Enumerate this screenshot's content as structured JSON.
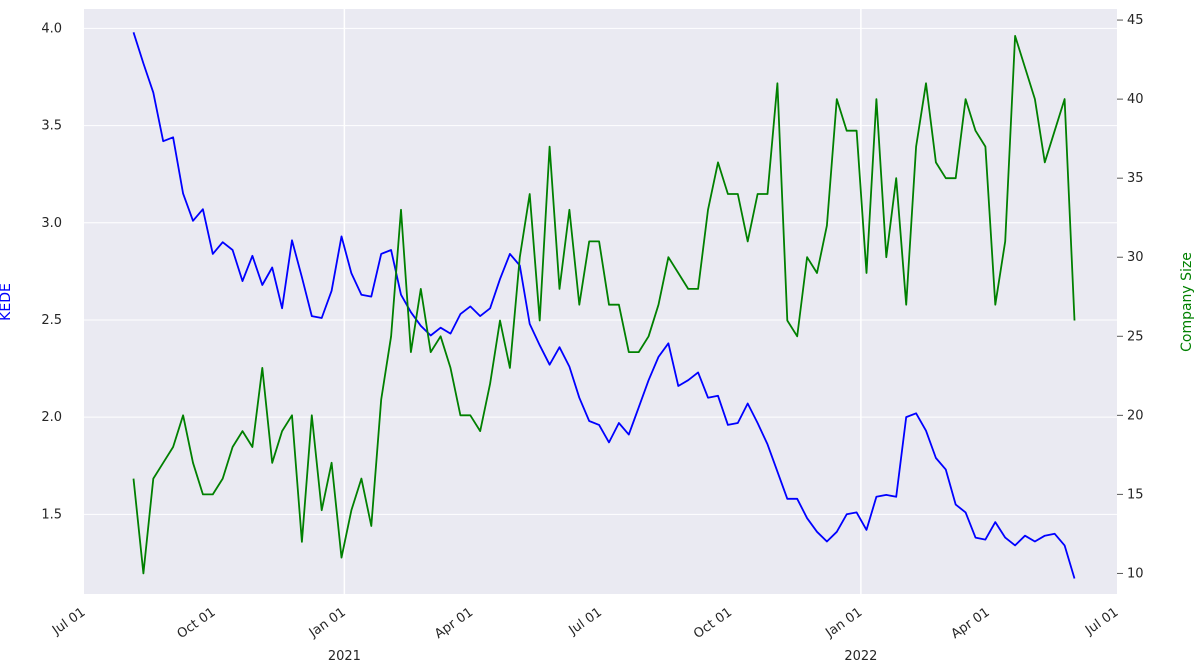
{
  "chart_data": {
    "type": "line",
    "x_axis": {
      "type": "date",
      "range": [
        "2020-07-01",
        "2022-07-01"
      ],
      "tick_labels": [
        "Jul 01",
        "Oct 01",
        "Jan 01",
        "Apr 01",
        "Jul 01",
        "Oct 01",
        "Jan 01",
        "Apr 01",
        "Jul 01"
      ],
      "tick_dates": [
        "2020-07-01",
        "2020-10-01",
        "2021-01-01",
        "2021-04-01",
        "2021-07-01",
        "2021-10-01",
        "2022-01-01",
        "2022-04-01",
        "2022-07-01"
      ],
      "year_labels": [
        {
          "label": "2021",
          "date": "2021-01-01"
        },
        {
          "label": "2022",
          "date": "2022-01-01"
        }
      ]
    },
    "y_left": {
      "label": "KEDE",
      "range": [
        1.09,
        4.1
      ],
      "ticks": [
        1.5,
        2.0,
        2.5,
        3.0,
        3.5,
        4.0
      ],
      "tick_labels": [
        "1.5",
        "2.0",
        "2.5",
        "3.0",
        "3.5",
        "4.0"
      ],
      "color": "#0000ff"
    },
    "y_right": {
      "label": "Company Size",
      "range": [
        8.7,
        45.7
      ],
      "ticks": [
        10,
        15,
        20,
        25,
        30,
        35,
        40,
        45
      ],
      "tick_labels": [
        "10",
        "15",
        "20",
        "25",
        "30",
        "35",
        "40",
        "45"
      ],
      "color": "#008000"
    },
    "grid": true,
    "background": "#eaeaf2",
    "series": [
      {
        "name": "KEDE",
        "axis": "left",
        "color": "#0000ff",
        "x": [
          "2020-08-05",
          "2020-08-12",
          "2020-08-19",
          "2020-08-26",
          "2020-09-02",
          "2020-09-09",
          "2020-09-16",
          "2020-09-23",
          "2020-09-30",
          "2020-10-07",
          "2020-10-14",
          "2020-10-21",
          "2020-10-28",
          "2020-11-04",
          "2020-11-11",
          "2020-11-18",
          "2020-11-25",
          "2020-12-02",
          "2020-12-09",
          "2020-12-16",
          "2020-12-23",
          "2020-12-30",
          "2021-01-06",
          "2021-01-13",
          "2021-01-20",
          "2021-01-27",
          "2021-02-03",
          "2021-02-10",
          "2021-02-17",
          "2021-02-24",
          "2021-03-03",
          "2021-03-10",
          "2021-03-17",
          "2021-03-24",
          "2021-03-31",
          "2021-04-07",
          "2021-04-14",
          "2021-04-21",
          "2021-04-28",
          "2021-05-05",
          "2021-05-12",
          "2021-05-19",
          "2021-05-26",
          "2021-06-02",
          "2021-06-09",
          "2021-06-16",
          "2021-06-23",
          "2021-06-30",
          "2021-07-07",
          "2021-07-14",
          "2021-07-21",
          "2021-07-28",
          "2021-08-04",
          "2021-08-11",
          "2021-08-18",
          "2021-08-25",
          "2021-09-01",
          "2021-09-08",
          "2021-09-15",
          "2021-09-22",
          "2021-09-29",
          "2021-10-06",
          "2021-10-13",
          "2021-10-20",
          "2021-10-27",
          "2021-11-03",
          "2021-11-10",
          "2021-11-17",
          "2021-11-24",
          "2021-12-01",
          "2021-12-08",
          "2021-12-15",
          "2021-12-22",
          "2021-12-29",
          "2022-01-05",
          "2022-01-12",
          "2022-01-19",
          "2022-01-26",
          "2022-02-02",
          "2022-02-09",
          "2022-02-16",
          "2022-02-23",
          "2022-03-02",
          "2022-03-09",
          "2022-03-16",
          "2022-03-23",
          "2022-03-30",
          "2022-04-06",
          "2022-04-13",
          "2022-04-20",
          "2022-04-27",
          "2022-05-04",
          "2022-05-11",
          "2022-05-18",
          "2022-05-25",
          "2022-06-01"
        ],
        "values": [
          3.98,
          3.82,
          3.67,
          3.42,
          3.44,
          3.15,
          3.01,
          3.07,
          2.84,
          2.9,
          2.86,
          2.7,
          2.83,
          2.68,
          2.77,
          2.56,
          2.91,
          2.72,
          2.52,
          2.51,
          2.65,
          2.93,
          2.74,
          2.63,
          2.62,
          2.84,
          2.86,
          2.63,
          2.54,
          2.47,
          2.42,
          2.46,
          2.43,
          2.53,
          2.57,
          2.52,
          2.56,
          2.71,
          2.84,
          2.78,
          2.48,
          2.37,
          2.27,
          2.36,
          2.26,
          2.1,
          1.98,
          1.96,
          1.87,
          1.97,
          1.91,
          2.05,
          2.19,
          2.31,
          2.38,
          2.16,
          2.19,
          2.23,
          2.1,
          2.11,
          1.96,
          1.97,
          2.07,
          1.97,
          1.86,
          1.72,
          1.58,
          1.58,
          1.48,
          1.41,
          1.36,
          1.41,
          1.5,
          1.51,
          1.42,
          1.59,
          1.6,
          1.59,
          2.0,
          2.02,
          1.93,
          1.79,
          1.73,
          1.55,
          1.51,
          1.38,
          1.37,
          1.46,
          1.38,
          1.34,
          1.39,
          1.36,
          1.39,
          1.4,
          1.34,
          1.17
        ]
      },
      {
        "name": "Company Size",
        "axis": "right",
        "color": "#008000",
        "x": [
          "2020-08-05",
          "2020-08-12",
          "2020-08-19",
          "2020-08-26",
          "2020-09-02",
          "2020-09-09",
          "2020-09-16",
          "2020-09-23",
          "2020-09-30",
          "2020-10-07",
          "2020-10-14",
          "2020-10-21",
          "2020-10-28",
          "2020-11-04",
          "2020-11-11",
          "2020-11-18",
          "2020-11-25",
          "2020-12-02",
          "2020-12-09",
          "2020-12-16",
          "2020-12-23",
          "2020-12-30",
          "2021-01-06",
          "2021-01-13",
          "2021-01-20",
          "2021-01-27",
          "2021-02-03",
          "2021-02-10",
          "2021-02-17",
          "2021-02-24",
          "2021-03-03",
          "2021-03-10",
          "2021-03-17",
          "2021-03-24",
          "2021-03-31",
          "2021-04-07",
          "2021-04-14",
          "2021-04-21",
          "2021-04-28",
          "2021-05-05",
          "2021-05-12",
          "2021-05-19",
          "2021-05-26",
          "2021-06-02",
          "2021-06-09",
          "2021-06-16",
          "2021-06-23",
          "2021-06-30",
          "2021-07-07",
          "2021-07-14",
          "2021-07-21",
          "2021-07-28",
          "2021-08-04",
          "2021-08-11",
          "2021-08-18",
          "2021-08-25",
          "2021-09-01",
          "2021-09-08",
          "2021-09-15",
          "2021-09-22",
          "2021-09-29",
          "2021-10-06",
          "2021-10-13",
          "2021-10-20",
          "2021-10-27",
          "2021-11-03",
          "2021-11-10",
          "2021-11-17",
          "2021-11-24",
          "2021-12-01",
          "2021-12-08",
          "2021-12-15",
          "2021-12-22",
          "2021-12-29",
          "2022-01-05",
          "2022-01-12",
          "2022-01-19",
          "2022-01-26",
          "2022-02-02",
          "2022-02-09",
          "2022-02-16",
          "2022-02-23",
          "2022-03-02",
          "2022-03-09",
          "2022-03-16",
          "2022-03-23",
          "2022-03-30",
          "2022-04-06",
          "2022-04-13",
          "2022-04-20",
          "2022-04-27",
          "2022-05-04",
          "2022-05-11",
          "2022-05-18",
          "2022-05-25",
          "2022-06-01"
        ],
        "values": [
          16,
          10,
          16,
          17,
          18,
          20,
          17,
          15,
          15,
          16,
          18,
          19,
          18,
          23,
          17,
          19,
          20,
          12,
          20,
          14,
          17,
          11,
          14,
          16,
          13,
          21,
          25,
          33,
          24,
          28,
          24,
          25,
          23,
          20,
          20,
          19,
          22,
          26,
          23,
          30,
          34,
          26,
          37,
          28,
          33,
          27,
          31,
          31,
          27,
          27,
          24,
          24,
          25,
          27,
          30,
          29,
          28,
          28,
          33,
          36,
          34,
          34,
          31,
          34,
          34,
          41,
          26,
          25,
          30,
          29,
          32,
          40,
          38,
          38,
          29,
          40,
          30,
          35,
          27,
          37,
          41,
          36,
          35,
          35,
          40,
          38,
          37,
          27,
          31,
          44,
          42,
          40,
          36,
          38,
          40,
          26
        ]
      }
    ]
  }
}
